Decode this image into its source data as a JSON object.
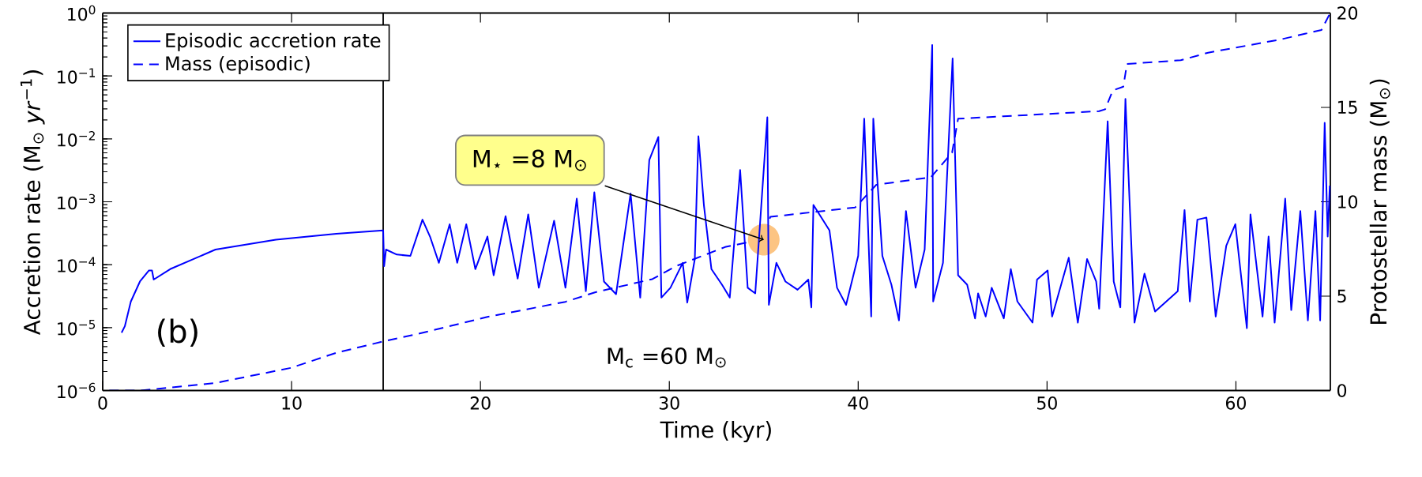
{
  "chart_data": {
    "type": "line",
    "xlabel": "Time (kyr)",
    "ylabel": "Accretion rate (M$_{⊙}$ *yr*$^{−1}$)",
    "y2label": "Protostellar mass (M$_{⊙}$)",
    "xlim": [
      0,
      65
    ],
    "xticks": [
      0,
      10,
      20,
      30,
      40,
      50,
      60
    ],
    "ylim": [
      1e-06,
      1
    ],
    "log": "y",
    "yticks": [
      {
        "value": 1e-06,
        "label": "10$^{−6}$"
      },
      {
        "value": 1e-05,
        "label": "10$^{−5}$"
      },
      {
        "value": 0.0001,
        "label": "10$^{−4}$"
      },
      {
        "value": 0.001,
        "label": "10$^{−3}$"
      },
      {
        "value": 0.01,
        "label": "10$^{−2}$"
      },
      {
        "value": 0.1,
        "label": "10$^{−1}$"
      },
      {
        "value": 1,
        "label": "10$^{0}$"
      }
    ],
    "y2lim": [
      0,
      20
    ],
    "y2ticks": [
      0,
      5,
      10,
      15,
      20
    ],
    "legend": "top left",
    "grid": false,
    "marker": "none",
    "series": [
      {
        "name": "Episodic accretion rate",
        "color": "#0000ff",
        "line_style": "solid",
        "x": [
          1.0,
          1.17,
          1.49,
          1.97,
          2.45,
          2.61,
          2.7,
          3.57,
          5.97,
          9.17,
          12.37,
          14.85,
          14.9,
          15.0,
          15.57,
          16.29,
          16.93,
          17.33,
          17.8,
          18.37,
          18.77,
          19.25,
          19.73,
          20.37,
          20.7,
          21.33,
          21.97,
          22.53,
          23.09,
          23.9,
          24.5,
          25.1,
          25.58,
          26.03,
          26.54,
          27.18,
          27.95,
          28.46,
          28.94,
          29.42,
          29.58,
          30.06,
          30.71,
          30.95,
          31.35,
          31.54,
          31.83,
          32.23,
          32.79,
          33.2,
          33.75,
          34.15,
          34.55,
          35.19,
          35.27,
          35.67,
          36.15,
          36.79,
          37.36,
          37.52,
          37.63,
          38.48,
          38.88,
          39.36,
          40.0,
          40.32,
          40.69,
          40.8,
          41.28,
          41.76,
          42.16,
          42.53,
          43.04,
          43.52,
          43.92,
          43.97,
          44.49,
          45.0,
          45.29,
          45.77,
          46.19,
          46.35,
          46.75,
          47.07,
          47.71,
          48.08,
          48.43,
          49.23,
          49.47,
          50.03,
          50.27,
          51.15,
          51.63,
          52.12,
          52.6,
          52.76,
          53.21,
          53.53,
          53.88,
          54.15,
          54.63,
          55.16,
          55.72,
          56.92,
          57.28,
          57.56,
          57.96,
          58.44,
          58.93,
          59.49,
          59.97,
          60.58,
          60.77,
          61.41,
          61.73,
          62.05,
          62.61,
          62.93,
          63.41,
          63.81,
          64.21,
          64.46,
          64.7,
          64.86,
          64.97
        ],
        "values": [
          8.3e-06,
          1.05e-05,
          2.6e-05,
          5.4e-05,
          8.1e-05,
          8.1e-05,
          5.8e-05,
          8.5e-05,
          0.000174,
          0.00025,
          0.00031,
          0.00035,
          9.5e-05,
          0.000174,
          0.000145,
          0.000138,
          0.00052,
          0.00028,
          0.000107,
          0.00044,
          0.000107,
          0.00044,
          8.5e-05,
          0.00028,
          6.8e-05,
          0.00059,
          6e-05,
          0.00063,
          4.3e-05,
          0.0005,
          4.3e-05,
          0.00112,
          3.8e-05,
          0.00141,
          5.4e-05,
          3.4e-05,
          0.00135,
          3e-05,
          0.0046,
          0.0107,
          3e-05,
          4.3e-05,
          0.000107,
          2.5e-05,
          0.000123,
          0.011,
          0.00089,
          8.5e-05,
          4.8e-05,
          3e-05,
          0.0032,
          4.3e-05,
          3.5e-05,
          0.022,
          2.3e-05,
          0.000107,
          5.4e-05,
          4e-05,
          5.8e-05,
          2.1e-05,
          0.00089,
          0.00035,
          4.3e-05,
          2.3e-05,
          0.000138,
          0.021,
          1.5e-05,
          0.021,
          0.000138,
          4.8e-05,
          1.3e-05,
          0.00071,
          4.3e-05,
          0.000174,
          0.31,
          2.6e-05,
          0.000107,
          0.19,
          6.8e-05,
          4.8e-05,
          1.4e-05,
          3.5e-05,
          1.5e-05,
          4.3e-05,
          1.4e-05,
          8.5e-05,
          2.6e-05,
          1.2e-05,
          5.8e-05,
          8.1e-05,
          1.5e-05,
          0.000129,
          1.2e-05,
          0.000123,
          5.4e-05,
          2e-05,
          0.019,
          5.4e-05,
          2.1e-05,
          0.043,
          1.2e-05,
          7.2e-05,
          1.8e-05,
          3.8e-05,
          0.00074,
          2.6e-05,
          0.00052,
          0.00056,
          1.5e-05,
          0.0002,
          0.00044,
          9.8e-06,
          0.00063,
          1.5e-05,
          0.00028,
          1.2e-05,
          0.00112,
          1.9e-05,
          0.00071,
          1.3e-05,
          0.00071,
          1.3e-05,
          0.018,
          0.00028,
          0.0018
        ]
      },
      {
        "name": "Mass (episodic)",
        "color": "#0000ff",
        "line_style": "dashed",
        "axis": "y2",
        "x": [
          0,
          2,
          5.97,
          9.97,
          12.37,
          14.85,
          16.69,
          20.37,
          24.5,
          26.06,
          29.1,
          30.38,
          32.95,
          34.87,
          35.35,
          39.84,
          40.96,
          43.85,
          44.97,
          45.29,
          52.76,
          53.08,
          53.48,
          54.04,
          54.23,
          57.08,
          58.53,
          62.37,
          63.65,
          64.53,
          64.94
        ],
        "values": [
          0,
          0,
          0.4,
          1.2,
          2.0,
          2.6,
          3.0,
          3.9,
          4.7,
          5.2,
          5.9,
          6.6,
          7.6,
          8.0,
          9.2,
          9.7,
          10.9,
          11.3,
          12.6,
          14.4,
          14.8,
          14.9,
          15.9,
          16.1,
          17.3,
          17.5,
          17.9,
          18.6,
          18.9,
          19.1,
          19.9
        ]
      }
    ],
    "ref_lines": [
      {
        "axis": "x",
        "value": 14.85,
        "color": "#000000"
      }
    ],
    "annotations": [
      "(b)",
      "M$_{c}$ =60 M$_{⊙}$",
      {
        "text": "M$_{⋆}$ =8 M$_{⊙}$",
        "x": 35.0,
        "y": 0.00025
      }
    ]
  }
}
